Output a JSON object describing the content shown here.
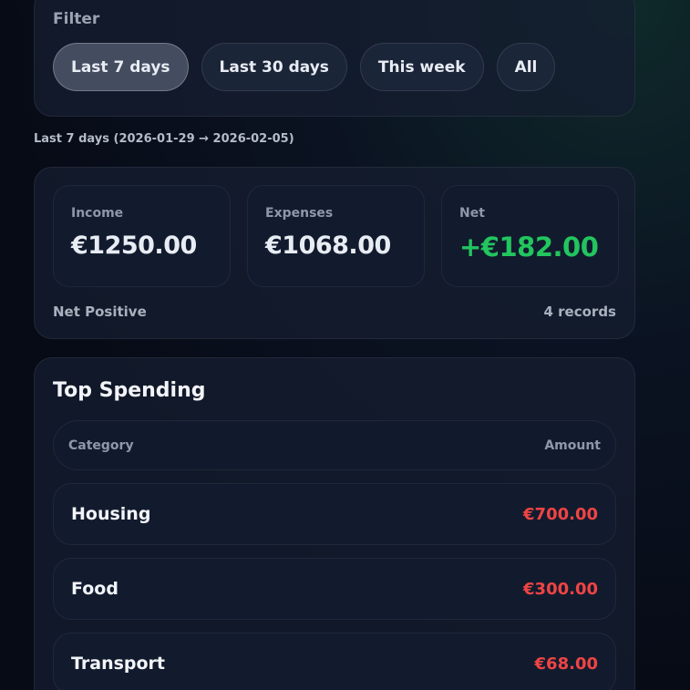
{
  "filter": {
    "label": "Filter",
    "options": [
      "Last 7 days",
      "Last 30 days",
      "This week",
      "All"
    ],
    "selected": "Last 7 days"
  },
  "range_caption": "Last 7 days (2026-01-29 → 2026-02-05)",
  "summary": {
    "income": {
      "label": "Income",
      "value": "€1250.00"
    },
    "expenses": {
      "label": "Expenses",
      "value": "€1068.00"
    },
    "net": {
      "label": "Net",
      "value": "+€182.00"
    },
    "status": "Net Positive",
    "records": "4 records"
  },
  "top_spending": {
    "title": "Top Spending",
    "columns": [
      "Category",
      "Amount"
    ],
    "rows": [
      {
        "category": "Housing",
        "amount": "€700.00"
      },
      {
        "category": "Food",
        "amount": "€300.00"
      },
      {
        "category": "Transport",
        "amount": "€68.00"
      }
    ]
  },
  "colors": {
    "positive": "#22c55e",
    "negative": "#ef4444"
  }
}
